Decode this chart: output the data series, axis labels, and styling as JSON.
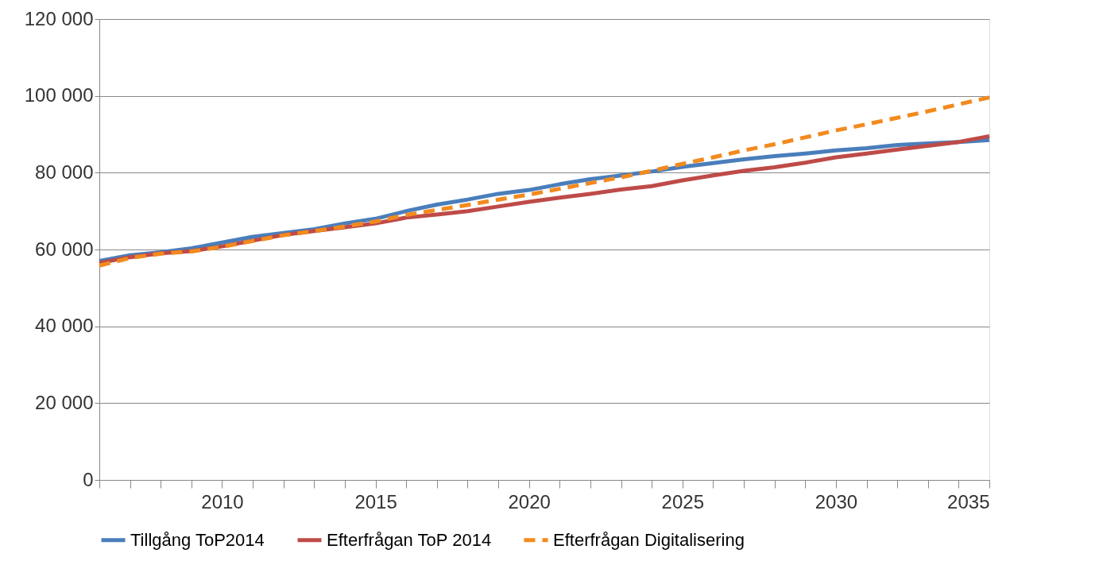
{
  "chart_data": {
    "type": "line",
    "x": [
      2006,
      2007,
      2008,
      2009,
      2010,
      2011,
      2012,
      2013,
      2014,
      2015,
      2016,
      2017,
      2018,
      2019,
      2020,
      2021,
      2022,
      2023,
      2024,
      2025,
      2026,
      2027,
      2028,
      2029,
      2030,
      2031,
      2032,
      2033,
      2034,
      2035
    ],
    "series": [
      {
        "name": "Tillgång ToP2014",
        "color": "#4a7ebb",
        "line_style": "solid",
        "values": [
          57000,
          58500,
          59300,
          60300,
          61800,
          63300,
          64300,
          65300,
          66800,
          68000,
          70000,
          71700,
          73000,
          74500,
          75500,
          77000,
          78300,
          79300,
          80300,
          81500,
          82500,
          83500,
          84300,
          85000,
          85800,
          86400,
          87200,
          87600,
          88000,
          88500
        ]
      },
      {
        "name": "Efterfrågan ToP 2014",
        "color": "#be4b48",
        "line_style": "solid",
        "values": [
          56500,
          58000,
          59000,
          59600,
          60800,
          62300,
          63800,
          64800,
          65800,
          66800,
          68300,
          69100,
          70000,
          71200,
          72400,
          73500,
          74500,
          75600,
          76500,
          78000,
          79300,
          80500,
          81400,
          82600,
          84000,
          85000,
          86000,
          87000,
          88000,
          89500
        ]
      },
      {
        "name": "Efterfrågan Digitalisering",
        "color": "#f28a1e",
        "line_style": "dashed",
        "values": [
          55800,
          57800,
          58900,
          59500,
          60700,
          62200,
          63700,
          64800,
          66000,
          67300,
          69000,
          70300,
          71600,
          73000,
          74300,
          75800,
          77300,
          78800,
          80500,
          82300,
          84000,
          85800,
          87400,
          89200,
          91000,
          92600,
          94300,
          96000,
          97800,
          99600
        ]
      }
    ],
    "xlim": [
      2006,
      2035
    ],
    "xticks": [
      {
        "value": 2006,
        "label": null
      },
      {
        "value": 2007,
        "label": null
      },
      {
        "value": 2008,
        "label": null
      },
      {
        "value": 2009,
        "label": null
      },
      2010,
      {
        "value": 2011,
        "label": null
      },
      {
        "value": 2012,
        "label": null
      },
      {
        "value": 2013,
        "label": null
      },
      {
        "value": 2014,
        "label": null
      },
      2015,
      {
        "value": 2016,
        "label": null
      },
      {
        "value": 2017,
        "label": null
      },
      {
        "value": 2018,
        "label": null
      },
      {
        "value": 2019,
        "label": null
      },
      2020,
      {
        "value": 2021,
        "label": null
      },
      {
        "value": 2022,
        "label": null
      },
      {
        "value": 2023,
        "label": null
      },
      {
        "value": 2024,
        "label": null
      },
      2025,
      {
        "value": 2026,
        "label": null
      },
      {
        "value": 2027,
        "label": null
      },
      {
        "value": 2028,
        "label": null
      },
      {
        "value": 2029,
        "label": null
      },
      2030,
      {
        "value": 2031,
        "label": null
      },
      {
        "value": 2032,
        "label": null
      },
      {
        "value": 2033,
        "label": null
      },
      {
        "value": 2034,
        "label": null
      },
      2035
    ],
    "ylim": [
      0,
      120000
    ],
    "yticks": [
      0,
      {
        "value": 20000,
        "label": "20 000"
      },
      {
        "value": 40000,
        "label": "40 000"
      },
      {
        "value": 60000,
        "label": "60 000"
      },
      {
        "value": 80000,
        "label": "80 000"
      },
      {
        "value": 100000,
        "label": "100 000"
      },
      {
        "value": 120000,
        "label": "120 000"
      }
    ],
    "grid": "y",
    "legend": "bottom",
    "marker": "none"
  }
}
